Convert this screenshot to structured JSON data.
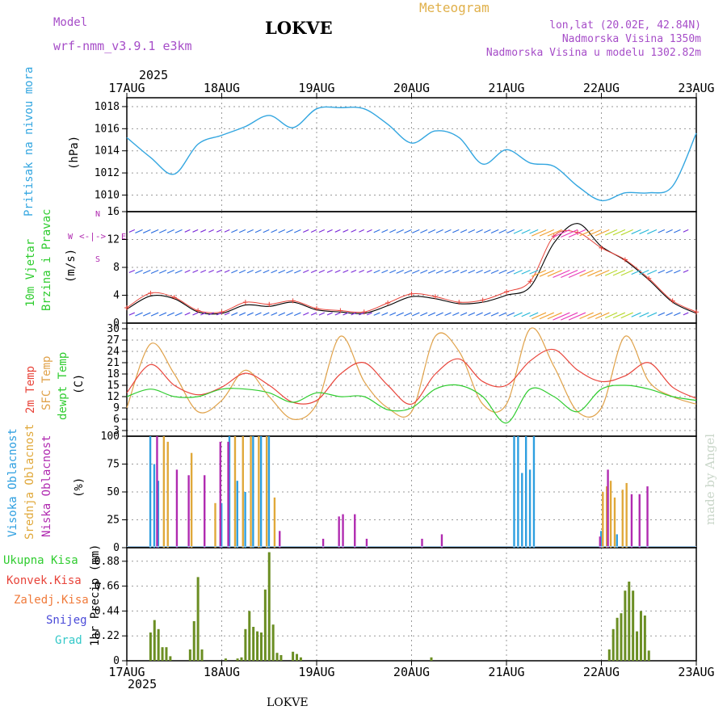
{
  "header": {
    "model_label": "Model",
    "model_name": "wrf-nmm_v3.9.1 e3km",
    "station": "LOKVE",
    "chart_title": "Meteogram",
    "lonlat": "lon,lat (20.02E, 42.84N)",
    "altitude": "Nadmorska Visina 1350m",
    "altitude_model": "Nadmorska Visina u modelu 1302.82m",
    "year": "2025",
    "bottom_station": "LOKVE",
    "credit": "made by Angel"
  },
  "colors": {
    "pressure": "#33a6e0",
    "temp2m": "#e8443a",
    "sfc": "#e0a24a",
    "dewpt": "#2fcc2f",
    "high_cloud": "#2e9fe0",
    "mid_cloud": "#e0a83a",
    "low_cloud": "#b02ab0",
    "precip": "#6b8e23",
    "model_text": "#a64dc8",
    "title_text": "#e0b04a"
  },
  "chart_data": [
    {
      "id": "pressure",
      "type": "line",
      "title": "Pritisak na nivou mora",
      "ylabel": "(hPa)",
      "ylim": [
        1008.5,
        1018.8
      ],
      "yticks": [
        1010,
        1012,
        1014,
        1016,
        1018
      ],
      "x_days": [
        "17AUG",
        "18AUG",
        "19AUG",
        "20AUG",
        "21AUG",
        "22AUG",
        "23AUG"
      ],
      "x_hours": [
        0,
        6,
        12,
        18,
        24,
        30,
        36,
        42,
        48,
        54,
        60,
        66,
        72,
        78,
        84,
        90,
        96,
        102,
        108,
        114,
        120,
        126,
        132,
        138,
        144
      ],
      "values": [
        1015.2,
        1013.4,
        1011.9,
        1014.6,
        1015.4,
        1016.2,
        1017.2,
        1016.1,
        1017.8,
        1017.9,
        1017.8,
        1016.4,
        1014.7,
        1015.8,
        1015.2,
        1012.8,
        1014.1,
        1012.9,
        1012.6,
        1010.8,
        1009.5,
        1010.2,
        1010.2,
        1010.8,
        1015.6
      ]
    },
    {
      "id": "wind",
      "type": "line",
      "title": "10m Vjetar",
      "title2": "Brzina i Pravac",
      "ylabel": "(m/s)",
      "compass": "N",
      "compass_w": "W",
      "compass_e": "E",
      "compass_s": "S",
      "ylim": [
        0,
        16
      ],
      "yticks": [
        0,
        4,
        8,
        12,
        16
      ],
      "x_hours": [
        0,
        6,
        12,
        18,
        24,
        30,
        36,
        42,
        48,
        54,
        60,
        66,
        72,
        78,
        84,
        90,
        96,
        102,
        108,
        114,
        120,
        126,
        132,
        138,
        144
      ],
      "speed": [
        2.0,
        3.9,
        3.5,
        1.6,
        1.4,
        2.6,
        2.4,
        3.0,
        1.9,
        1.6,
        1.4,
        2.5,
        3.8,
        3.5,
        2.8,
        3.0,
        4.0,
        5.2,
        11.5,
        14.3,
        11.0,
        9.0,
        6.2,
        3.0,
        1.4
      ],
      "gust": [
        2.2,
        4.3,
        3.7,
        1.8,
        1.6,
        3.0,
        2.7,
        3.2,
        2.1,
        1.8,
        1.6,
        2.9,
        4.2,
        3.8,
        3.0,
        3.3,
        4.5,
        6.0,
        12.5,
        13.0,
        10.8,
        9.1,
        6.4,
        3.2,
        1.6
      ]
    },
    {
      "id": "temperature",
      "type": "line",
      "title_a": "2m Temp",
      "title_b": "SFC Temp",
      "title_c": "dewpt Temp",
      "ylabel": "(C)",
      "ylim": [
        1.5,
        31.5
      ],
      "yticks": [
        3,
        6,
        9,
        12,
        15,
        18,
        21,
        24,
        27,
        30
      ],
      "x_hours": [
        0,
        6,
        12,
        18,
        24,
        30,
        36,
        42,
        48,
        54,
        60,
        66,
        72,
        78,
        84,
        90,
        96,
        102,
        108,
        114,
        120,
        126,
        132,
        138,
        144
      ],
      "temp2m": [
        13.0,
        20.5,
        15.0,
        12.5,
        14.5,
        18.2,
        15.0,
        10.5,
        11.0,
        18.0,
        21.0,
        15.0,
        10.0,
        18.0,
        22.0,
        16.0,
        15.0,
        21.5,
        24.5,
        19.0,
        16.0,
        17.5,
        21.0,
        14.5,
        11.5
      ],
      "sfc": [
        9.0,
        26.0,
        18.0,
        8.0,
        11.0,
        19.0,
        12.0,
        6.0,
        10.0,
        28.0,
        16.0,
        9.0,
        8.0,
        28.0,
        24.0,
        10.0,
        10.0,
        30.0,
        20.0,
        8.0,
        9.0,
        28.0,
        16.0,
        12.0,
        10.0
      ],
      "dewpt": [
        12.0,
        14.0,
        12.0,
        12.0,
        14.0,
        14.0,
        13.0,
        10.5,
        13.0,
        12.0,
        12.0,
        8.5,
        9.0,
        14.0,
        15.0,
        12.0,
        5.0,
        14.0,
        12.0,
        8.0,
        14.0,
        15.0,
        14.0,
        12.0,
        11.0
      ]
    },
    {
      "id": "clouds",
      "type": "bar",
      "title_a": "Visoka Oblacnost",
      "title_b": "Srednja Oblacnost",
      "title_c": "Niska Oblacnost",
      "ylabel": "(%)",
      "ylim": [
        0,
        100
      ],
      "yticks": [
        0,
        25,
        50,
        75,
        100
      ],
      "high": [
        [
          6,
          100
        ],
        [
          7,
          75
        ],
        [
          8,
          60
        ],
        [
          24,
          40
        ],
        [
          26,
          100
        ],
        [
          28,
          60
        ],
        [
          30,
          50
        ],
        [
          32,
          100
        ],
        [
          34,
          100
        ],
        [
          36,
          100
        ],
        [
          98,
          100
        ],
        [
          99,
          100
        ],
        [
          100,
          67
        ],
        [
          101,
          100
        ],
        [
          102,
          70
        ],
        [
          103,
          100
        ],
        [
          120,
          15
        ],
        [
          124,
          12
        ]
      ],
      "mid": [
        [
          9,
          100
        ],
        [
          10,
          95
        ],
        [
          16,
          85
        ],
        [
          22,
          40
        ],
        [
          27,
          100
        ],
        [
          29,
          100
        ],
        [
          31,
          100
        ],
        [
          33,
          100
        ],
        [
          35,
          100
        ],
        [
          37,
          45
        ],
        [
          120,
          50
        ],
        [
          121,
          55
        ],
        [
          122,
          60
        ],
        [
          123,
          45
        ],
        [
          125,
          52
        ],
        [
          126,
          58
        ]
      ],
      "low": [
        [
          7,
          100
        ],
        [
          12,
          70
        ],
        [
          15,
          65
        ],
        [
          19,
          65
        ],
        [
          23,
          95
        ],
        [
          25,
          95
        ],
        [
          38,
          15
        ],
        [
          49,
          8
        ],
        [
          53,
          28
        ],
        [
          54,
          30
        ],
        [
          57,
          30
        ],
        [
          60,
          8
        ],
        [
          74,
          8
        ],
        [
          79,
          12
        ],
        [
          119,
          10
        ],
        [
          121,
          70
        ],
        [
          127,
          48
        ],
        [
          129,
          48
        ],
        [
          131,
          55
        ]
      ]
    },
    {
      "id": "precip",
      "type": "bar",
      "legend_total": "Ukupna Kisa",
      "legend_conv": "Konvek.Kisa",
      "legend_frz": "Zaledj.Kisa",
      "legend_snow": "Snijeg",
      "legend_hail": "Grad",
      "ylabel": "1hr Precip (mm)",
      "ylim": [
        0,
        1.0
      ],
      "yticks": [
        0,
        0.22,
        0.44,
        0.66,
        0.88
      ],
      "values": [
        [
          6,
          0.25
        ],
        [
          7,
          0.36
        ],
        [
          8,
          0.28
        ],
        [
          9,
          0.12
        ],
        [
          10,
          0.12
        ],
        [
          11,
          0.04
        ],
        [
          16,
          0.1
        ],
        [
          17,
          0.35
        ],
        [
          18,
          0.74
        ],
        [
          19,
          0.1
        ],
        [
          25,
          0.02
        ],
        [
          28,
          0.02
        ],
        [
          29,
          0.03
        ],
        [
          30,
          0.28
        ],
        [
          31,
          0.44
        ],
        [
          32,
          0.3
        ],
        [
          33,
          0.26
        ],
        [
          34,
          0.25
        ],
        [
          35,
          0.63
        ],
        [
          36,
          0.96
        ],
        [
          37,
          0.32
        ],
        [
          38,
          0.07
        ],
        [
          39,
          0.05
        ],
        [
          42,
          0.08
        ],
        [
          43,
          0.06
        ],
        [
          44,
          0.03
        ],
        [
          77,
          0.03
        ],
        [
          122,
          0.1
        ],
        [
          123,
          0.28
        ],
        [
          124,
          0.38
        ],
        [
          125,
          0.42
        ],
        [
          126,
          0.62
        ],
        [
          127,
          0.7
        ],
        [
          128,
          0.62
        ],
        [
          129,
          0.26
        ],
        [
          130,
          0.44
        ],
        [
          131,
          0.4
        ],
        [
          132,
          0.09
        ]
      ]
    }
  ]
}
